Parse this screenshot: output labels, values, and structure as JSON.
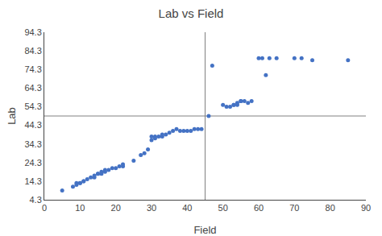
{
  "chart_data": {
    "type": "scatter",
    "title": "Lab vs Field",
    "xlabel": "Field",
    "ylabel": "Lab",
    "x": [
      5,
      8,
      9,
      9,
      10,
      10,
      11,
      11,
      12,
      13,
      14,
      14,
      15,
      15,
      16,
      16,
      17,
      17,
      18,
      19,
      20,
      21,
      22,
      22,
      25,
      27,
      28,
      29,
      30,
      30,
      31,
      31,
      32,
      33,
      33,
      34,
      35,
      36,
      37,
      38,
      39,
      40,
      41,
      42,
      43,
      44,
      46,
      47,
      50,
      51,
      52,
      53,
      53,
      54,
      54,
      55,
      55,
      56,
      57,
      58,
      62,
      60,
      61,
      63,
      65,
      70,
      72,
      75,
      85
    ],
    "values": [
      9.3,
      11.3,
      13.3,
      12.3,
      13.3,
      13.3,
      14.3,
      14.3,
      15.3,
      16.3,
      17.3,
      16.3,
      18.3,
      18.3,
      18.3,
      19.3,
      19.3,
      20.3,
      20.3,
      21.3,
      21.3,
      22.3,
      22.3,
      23.3,
      25.3,
      28.3,
      29.3,
      31.3,
      36.3,
      38.3,
      38.3,
      37.3,
      38.3,
      38.3,
      39.3,
      39.3,
      40.3,
      41.3,
      42.3,
      41.3,
      41.3,
      41.3,
      41.3,
      42.3,
      42.3,
      42.3,
      49.3,
      76.3,
      55.3,
      54.3,
      54.3,
      55.3,
      55.3,
      55.3,
      56.3,
      57.3,
      57.3,
      57.3,
      56.3,
      57.3,
      71.3,
      80.3,
      80.3,
      80.3,
      80.3,
      80.3,
      80.3,
      79.3,
      79.3
    ],
    "color": "#4472C4",
    "marker": "circle",
    "xlim": [
      0,
      90
    ],
    "xticks": [
      0,
      10,
      20,
      30,
      40,
      50,
      60,
      70,
      80,
      90
    ],
    "ylim": [
      4.3,
      94.3
    ],
    "yticks": [
      4.3,
      14.3,
      24.3,
      34.3,
      44.3,
      54.3,
      64.3,
      74.3,
      84.3,
      94.3
    ],
    "quadrant_x": 45,
    "quadrant_y": 49.3,
    "grid": false
  }
}
